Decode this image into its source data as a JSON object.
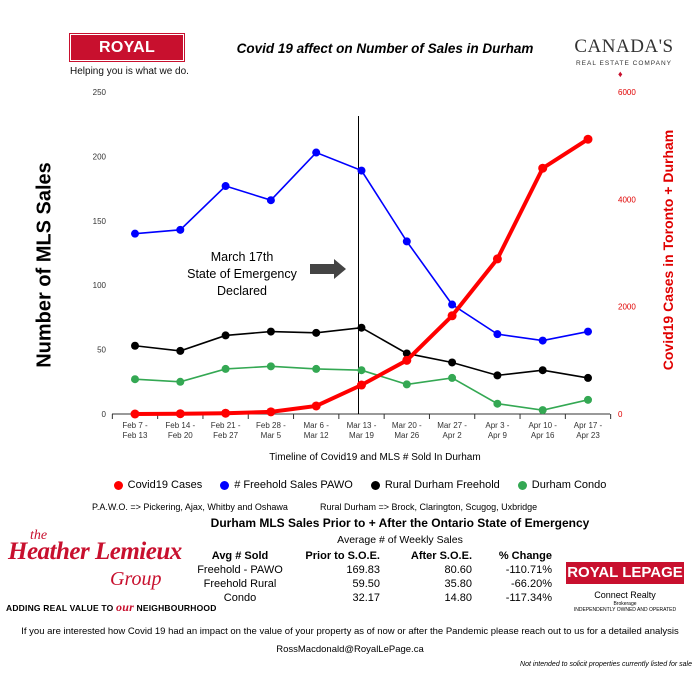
{
  "header": {
    "logo_text": "ROYAL LEPAGE",
    "logo_tagline": "Helping you is what we do.",
    "title": "Covid 19 affect on Number of Sales in Durham",
    "brand_line1": "CANADA'S",
    "brand_line2": "REAL ESTATE COMPANY"
  },
  "colors": {
    "covid": "#ff0000",
    "freehold_pawo": "#0000ff",
    "rural": "#000000",
    "condo": "#34a853",
    "brand_red": "#c8102e"
  },
  "chart_data": {
    "type": "line",
    "title": "Covid 19 affect on Number of Sales in Durham",
    "xlabel": "Timeline of Covid19 and MLS # Sold In Durham",
    "ylabel": "Number of MLS Sales",
    "ylabel_right": "Covid19 Cases in Toronto + Durham",
    "categories": [
      [
        "Feb 7 -",
        "Feb 13"
      ],
      [
        "Feb 14 -",
        "Feb 20"
      ],
      [
        "Feb 21 -",
        "Feb 27"
      ],
      [
        "Feb 28 -",
        "Mar 5"
      ],
      [
        "Mar 6 -",
        "Mar 12"
      ],
      [
        "Mar 13 -",
        "Mar 19"
      ],
      [
        "Mar 20 -",
        "Mar 26"
      ],
      [
        "Mar 27 -",
        "Apr 2"
      ],
      [
        "Apr 3 -",
        "Apr 9"
      ],
      [
        "Apr 10 -",
        "Apr 16"
      ],
      [
        "Apr 17 -",
        "Apr 23"
      ]
    ],
    "ylim": [
      0,
      250
    ],
    "yticks": [
      "0",
      "50",
      "100",
      "150",
      "200",
      "250"
    ],
    "ylim_right": [
      0,
      6000
    ],
    "yticks_right": [
      "0",
      "2000",
      "4000",
      "6000"
    ],
    "series": [
      {
        "name": "# Freehold Sales PAWO",
        "axis": "left",
        "color": "#0000ff",
        "values": [
          140,
          143,
          177,
          166,
          203,
          189,
          134,
          85,
          62,
          57,
          64
        ]
      },
      {
        "name": "Rural Durham Freehold",
        "axis": "left",
        "color": "#000000",
        "values": [
          53,
          49,
          61,
          64,
          63,
          67,
          47,
          40,
          30,
          34,
          28
        ]
      },
      {
        "name": "Durham Condo",
        "axis": "left",
        "color": "#34a853",
        "values": [
          27,
          25,
          35,
          37,
          35,
          34,
          23,
          28,
          8,
          3,
          11
        ]
      },
      {
        "name": "Covid19 Cases",
        "axis": "right",
        "color": "#ff0000",
        "values": [
          0,
          5,
          15,
          40,
          150,
          540,
          1000,
          1830,
          2890,
          4580,
          5120
        ]
      }
    ],
    "annotation": {
      "lines": [
        "March 17th",
        "State of Emergency",
        "Declared"
      ],
      "marker_index": 5
    },
    "legend_position": "bottom"
  },
  "legend": [
    {
      "label": "Covid19 Cases",
      "color": "#ff0000"
    },
    {
      "label": "# Freehold Sales PAWO",
      "color": "#0000ff"
    },
    {
      "label": "Rural Durham Freehold",
      "color": "#000000"
    },
    {
      "label": "Durham Condo",
      "color": "#34a853"
    }
  ],
  "notes": {
    "pawo": "P.A.W.O. => Pickering, Ajax, Whitby and Oshawa",
    "rural": "Rural Durham => Brock, Clarington, Scugog, Uxbridge"
  },
  "table": {
    "title": "Durham MLS Sales Prior to + After the Ontario State of Emergency",
    "subtitle": "Average # of  Weekly Sales",
    "headers": [
      "Avg # Sold",
      "Prior to S.O.E.",
      "After S.O.E.",
      "% Change"
    ],
    "rows": [
      [
        "Freehold - PAWO",
        "169.83",
        "80.60",
        "-110.71%"
      ],
      [
        "Freehold Rural",
        "59.50",
        "35.80",
        "-66.20%"
      ],
      [
        "Condo",
        "32.17",
        "14.80",
        "-117.34%"
      ]
    ]
  },
  "agent": {
    "the": "the",
    "name": "Heather Lemieux",
    "group": "Group",
    "tag_pre": "ADDING REAL VALUE TO",
    "tag_our": "our",
    "tag_post": "NEIGHBOURHOOD"
  },
  "brokerage": {
    "logo_text": "ROYAL LEPAGE",
    "name": "Connect Realty",
    "line1": "Brokerage",
    "line2": "INDEPENDENTLY OWNED AND OPERATED"
  },
  "footer": {
    "message": "If you are interested how Covid 19 had an impact on the value of your property as of now or after the Pandemic please reach out to us for a detailed analysis",
    "email": "RossMacdonald@RoyalLePage.ca",
    "disclaimer": "Not intended to solicit properties currently listed for sale"
  }
}
